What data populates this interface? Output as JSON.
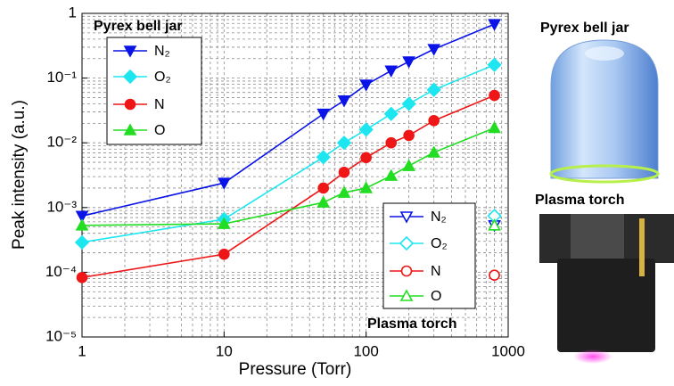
{
  "chart_data": {
    "type": "line",
    "xlabel": "Pressure (Torr)",
    "ylabel": "Peak intensity (a.u.)",
    "annotations": [
      "Pyrex bell jar",
      "Plasma torch"
    ],
    "xscale": "log",
    "yscale": "log",
    "grid": true,
    "minor_grid": true,
    "xlim": [
      1,
      1000
    ],
    "xticks": [
      1,
      10,
      100,
      1000
    ],
    "ylim": [
      1e-05,
      1
    ],
    "yticks": [
      {
        "value": 1e-05,
        "label": "10⁻⁵"
      },
      {
        "value": 0.0001,
        "label": "10⁻⁴"
      },
      {
        "value": 0.001,
        "label": "10⁻³"
      },
      {
        "value": 0.01,
        "label": "10⁻²"
      },
      {
        "value": 0.1,
        "label": "10⁻¹"
      },
      1
    ],
    "series": [
      {
        "name": "N₂",
        "color": "#0a14e6",
        "marker": "triangle-down",
        "filled": true,
        "x": [
          1,
          10,
          50,
          70,
          100,
          150,
          200,
          300,
          800
        ],
        "values": [
          0.00074,
          0.0024,
          0.028,
          0.045,
          0.079,
          0.13,
          0.18,
          0.28,
          0.68
        ]
      },
      {
        "name": "O₂",
        "color": "#1ee6f0",
        "marker": "diamond",
        "filled": true,
        "x": [
          1,
          10,
          50,
          70,
          100,
          150,
          200,
          300,
          800
        ],
        "values": [
          0.00029,
          0.00066,
          0.006,
          0.01,
          0.016,
          0.028,
          0.04,
          0.066,
          0.16
        ]
      },
      {
        "name": "N",
        "color": "#ee1616",
        "marker": "circle",
        "filled": true,
        "x": [
          1,
          10,
          50,
          70,
          100,
          150,
          200,
          300,
          800
        ],
        "values": [
          8.3e-05,
          0.00019,
          0.002,
          0.0035,
          0.0059,
          0.01,
          0.013,
          0.022,
          0.054
        ]
      },
      {
        "name": "O",
        "color": "#22dd22",
        "marker": "triangle-up",
        "filled": true,
        "x": [
          1,
          10,
          50,
          70,
          100,
          150,
          200,
          300,
          800
        ],
        "values": [
          0.00053,
          0.00056,
          0.0012,
          0.0017,
          0.002,
          0.0031,
          0.0044,
          0.0071,
          0.017
        ]
      },
      {
        "name": "N₂",
        "color": "#0a14e6",
        "marker": "triangle-down",
        "filled": false,
        "x": [
          800
        ],
        "values": [
          0.00053
        ]
      },
      {
        "name": "O₂",
        "color": "#1ee6f0",
        "marker": "diamond",
        "filled": false,
        "x": [
          800
        ],
        "values": [
          0.00074
        ]
      },
      {
        "name": "N",
        "color": "#ee1616",
        "marker": "circle",
        "filled": false,
        "x": [
          800
        ],
        "values": [
          9e-05
        ]
      },
      {
        "name": "O",
        "color": "#22dd22",
        "marker": "triangle-up",
        "filled": false,
        "x": [
          800
        ],
        "values": [
          0.00053
        ]
      }
    ]
  },
  "photos": [
    {
      "label": "Pyrex bell jar"
    },
    {
      "label": "Plasma torch"
    }
  ]
}
